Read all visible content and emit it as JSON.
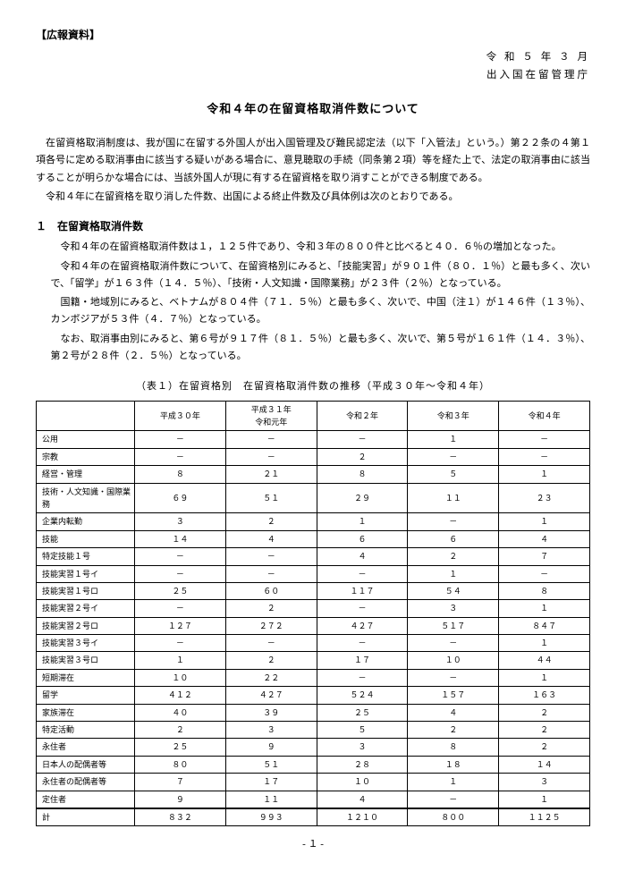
{
  "header_tag": "【広報資料】",
  "date_line": "令 和 ５ 年 ３ 月",
  "agency": "出入国在留管理庁",
  "title": "令和４年の在留資格取消件数について",
  "intro": [
    "在留資格取消制度は、我が国に在留する外国人が出入国管理及び難民認定法（以下「入管法」という。）第２２条の４第１項各号に定める取消事由に該当する疑いがある場合に、意見聴取の手続（同条第２項）等を経た上で、法定の取消事由に該当することが明らかな場合には、当該外国人が現に有する在留資格を取り消すことができる制度である。",
    "令和４年に在留資格を取り消した件数、出国による終止件数及び具体例は次のとおりである。"
  ],
  "section1_head": "１　在留資格取消件数",
  "section1_paras": [
    "令和４年の在留資格取消件数は１，１２５件であり、令和３年の８００件と比べると４０．６％の増加となった。",
    "令和４年の在留資格取消件数について、在留資格別にみると、「技能実習」が９０１件（８０．１％）と最も多く、次いで、「留学」が１６３件（１４．５％）、「技術・人文知識・国際業務」が２３件（２％）となっている。",
    "国籍・地域別にみると、ベトナムが８０４件（７１．５％）と最も多く、次いで、中国（注１）が１４６件（１３％）、カンボジアが５３件（４．７％）となっている。",
    "なお、取消事由別にみると、第６号が９１７件（８１．５％）と最も多く、次いで、第５号が１６１件（１４．３％）、第２号が２８件（２．５％）となっている。"
  ],
  "table_caption": "（表１）在留資格別　在留資格取消件数の推移（平成３０年～令和４年）",
  "table": {
    "columns": [
      "",
      "平成３０年",
      "平成３１年\n令和元年",
      "令和２年",
      "令和３年",
      "令和４年"
    ],
    "rows": [
      [
        "公用",
        "－",
        "－",
        "－",
        "１",
        "－"
      ],
      [
        "宗教",
        "－",
        "－",
        "２",
        "－",
        "－"
      ],
      [
        "経営・管理",
        "８",
        "２１",
        "８",
        "５",
        "１"
      ],
      [
        "技術・人文知識・国際業務",
        "６９",
        "５１",
        "２９",
        "１１",
        "２３"
      ],
      [
        "企業内転勤",
        "３",
        "２",
        "１",
        "－",
        "１"
      ],
      [
        "技能",
        "１４",
        "４",
        "６",
        "６",
        "４"
      ],
      [
        "特定技能１号",
        "－",
        "－",
        "４",
        "２",
        "７"
      ],
      [
        "技能実習１号イ",
        "－",
        "－",
        "－",
        "１",
        "－"
      ],
      [
        "技能実習１号ロ",
        "２５",
        "６０",
        "１１７",
        "５４",
        "８"
      ],
      [
        "技能実習２号イ",
        "－",
        "２",
        "－",
        "３",
        "１"
      ],
      [
        "技能実習２号ロ",
        "１２７",
        "２７２",
        "４２７",
        "５１７",
        "８４７"
      ],
      [
        "技能実習３号イ",
        "－",
        "－",
        "－",
        "－",
        "１"
      ],
      [
        "技能実習３号ロ",
        "１",
        "２",
        "１７",
        "１０",
        "４４"
      ],
      [
        "短期滞在",
        "１０",
        "２２",
        "－",
        "－",
        "１"
      ],
      [
        "留学",
        "４１２",
        "４２７",
        "５２４",
        "１５７",
        "１６３"
      ],
      [
        "家族滞在",
        "４０",
        "３９",
        "２５",
        "４",
        "２"
      ],
      [
        "特定活動",
        "２",
        "３",
        "５",
        "２",
        "２"
      ],
      [
        "永住者",
        "２５",
        "９",
        "３",
        "８",
        "２"
      ],
      [
        "日本人の配偶者等",
        "８０",
        "５１",
        "２８",
        "１８",
        "１４"
      ],
      [
        "永住者の配偶者等",
        "７",
        "１７",
        "１０",
        "１",
        "３"
      ],
      [
        "定住者",
        "９",
        "１１",
        "４",
        "－",
        "１"
      ]
    ],
    "total_row": [
      "計",
      "８３２",
      "９９３",
      "１２１０",
      "８００",
      "１１２５"
    ]
  },
  "page_number": "- １ -"
}
